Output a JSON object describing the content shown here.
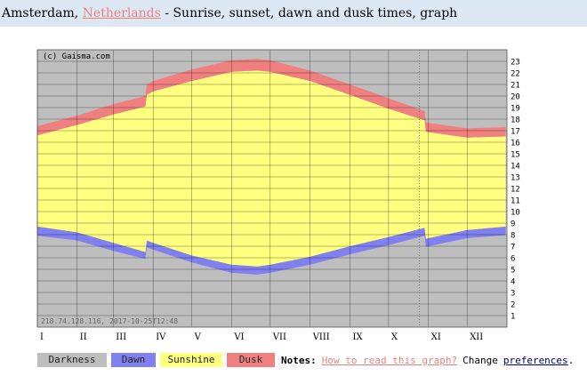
{
  "header": {
    "city": "Amsterdam,",
    "country": "Netherlands",
    "rest": " - Sunrise, sunset, dawn and dusk times, graph"
  },
  "legend": {
    "darkness": "Darkness",
    "dawn": "Dawn",
    "sunshine": "Sunshine",
    "dusk": "Dusk",
    "notes_label": "Notes:",
    "how_to_read": "How to read this graph?",
    "change": "Change",
    "preferences": "preferences",
    "period": "."
  },
  "colors": {
    "darkness": "#bebebe",
    "dawn": "#8080f0",
    "sunshine": "#ffff80",
    "dusk": "#f08080",
    "grid": "#000000",
    "header_bg": "#dce8f4"
  },
  "chart_data": {
    "type": "area",
    "title": "",
    "watermark": "(c) Gaisma.com",
    "footer_text": "218.74.128.116, 2017-10-25T12:48",
    "xlabel": "",
    "ylabel": "",
    "ylim": [
      0,
      24
    ],
    "y_ticks": [
      "1",
      "2",
      "3",
      "4",
      "5",
      "6",
      "7",
      "8",
      "9",
      "10",
      "11",
      "12",
      "13",
      "14",
      "15",
      "16",
      "17",
      "18",
      "19",
      "20",
      "21",
      "22",
      "23"
    ],
    "x_ticks": [
      "I",
      "II",
      "III",
      "IV",
      "V",
      "VI",
      "VII",
      "VIII",
      "IX",
      "X",
      "XI",
      "XII"
    ],
    "x_unit": "day of year",
    "dst_start_day": 85,
    "dst_end_day": 302,
    "today_day": 298,
    "grid": true,
    "series": [
      {
        "name": "Dawn",
        "x": [
          1,
          32,
          60,
          85,
          86,
          91,
          121,
          152,
          172,
          182,
          213,
          244,
          274,
          302,
          303,
          335,
          365
        ],
        "start": [
          7.9,
          7.5,
          6.6,
          5.9,
          6.9,
          6.7,
          5.6,
          4.7,
          4.55,
          4.7,
          5.4,
          6.3,
          7.1,
          7.9,
          6.95,
          7.7,
          7.95
        ],
        "end": [
          8.7,
          8.2,
          7.3,
          6.5,
          7.5,
          7.3,
          6.2,
          5.4,
          5.25,
          5.4,
          6.1,
          7.0,
          7.8,
          8.6,
          7.65,
          8.4,
          8.7
        ]
      },
      {
        "name": "Sunshine",
        "x": [
          1,
          32,
          60,
          85,
          86,
          91,
          121,
          152,
          172,
          182,
          213,
          244,
          274,
          302,
          303,
          335,
          365
        ],
        "start": [
          8.7,
          8.2,
          7.3,
          6.5,
          7.5,
          7.3,
          6.2,
          5.4,
          5.25,
          5.4,
          6.1,
          7.0,
          7.8,
          8.6,
          7.65,
          8.4,
          8.7
        ],
        "end": [
          16.6,
          17.5,
          18.4,
          19.1,
          20.1,
          20.4,
          21.3,
          22.1,
          22.2,
          22.1,
          21.3,
          20.1,
          18.9,
          17.9,
          16.9,
          16.4,
          16.5
        ]
      },
      {
        "name": "Dusk",
        "x": [
          1,
          32,
          60,
          85,
          86,
          91,
          121,
          152,
          172,
          182,
          213,
          244,
          274,
          302,
          303,
          335,
          365
        ],
        "start": [
          16.6,
          17.5,
          18.4,
          19.1,
          20.1,
          20.4,
          21.3,
          22.1,
          22.2,
          22.1,
          21.3,
          20.1,
          18.9,
          17.9,
          16.9,
          16.4,
          16.5
        ],
        "end": [
          17.4,
          18.3,
          19.3,
          20.0,
          21.0,
          21.3,
          22.3,
          23.1,
          23.2,
          23.1,
          22.2,
          21.0,
          19.8,
          18.7,
          17.7,
          17.2,
          17.3
        ]
      }
    ]
  }
}
